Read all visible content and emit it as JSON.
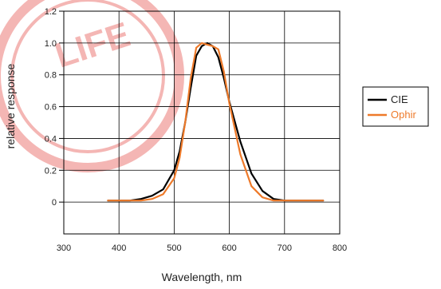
{
  "chart_data": {
    "type": "line",
    "xlabel": "Wavelength, nm",
    "ylabel": "relative response",
    "xlim": [
      300,
      800
    ],
    "ylim": [
      -0.2,
      1.2
    ],
    "xticks": [
      "300",
      "400",
      "500",
      "600",
      "700",
      "800"
    ],
    "yticks": [
      "1.2",
      "1.0",
      "0.8",
      "0.6",
      "0.4",
      "0.2",
      "0"
    ],
    "grid": true,
    "legend_position": "right",
    "series": [
      {
        "name": "CIE",
        "color": "#000000",
        "x": [
          380,
          400,
          420,
          440,
          460,
          480,
          500,
          510,
          520,
          530,
          540,
          550,
          560,
          570,
          580,
          590,
          600,
          620,
          640,
          660,
          680,
          700,
          720,
          740,
          770
        ],
        "y": [
          0.01,
          0.01,
          0.01,
          0.02,
          0.04,
          0.08,
          0.2,
          0.32,
          0.5,
          0.72,
          0.92,
          0.98,
          1.0,
          0.98,
          0.91,
          0.78,
          0.63,
          0.38,
          0.18,
          0.07,
          0.02,
          0.01,
          0.01,
          0.01,
          0.01
        ]
      },
      {
        "name": "Ophir",
        "color": "#ee7a2a",
        "x": [
          380,
          400,
          420,
          440,
          460,
          480,
          500,
          510,
          520,
          530,
          540,
          550,
          560,
          570,
          580,
          590,
          600,
          620,
          640,
          660,
          680,
          700,
          720,
          740,
          770
        ],
        "y": [
          0.01,
          0.01,
          0.01,
          0.01,
          0.02,
          0.05,
          0.15,
          0.28,
          0.5,
          0.78,
          0.97,
          1.0,
          0.99,
          0.98,
          0.96,
          0.82,
          0.62,
          0.3,
          0.1,
          0.03,
          0.01,
          0.01,
          0.01,
          0.01,
          0.01
        ]
      }
    ]
  },
  "watermark": {
    "text": "LIFE",
    "color": "#e3413c"
  }
}
